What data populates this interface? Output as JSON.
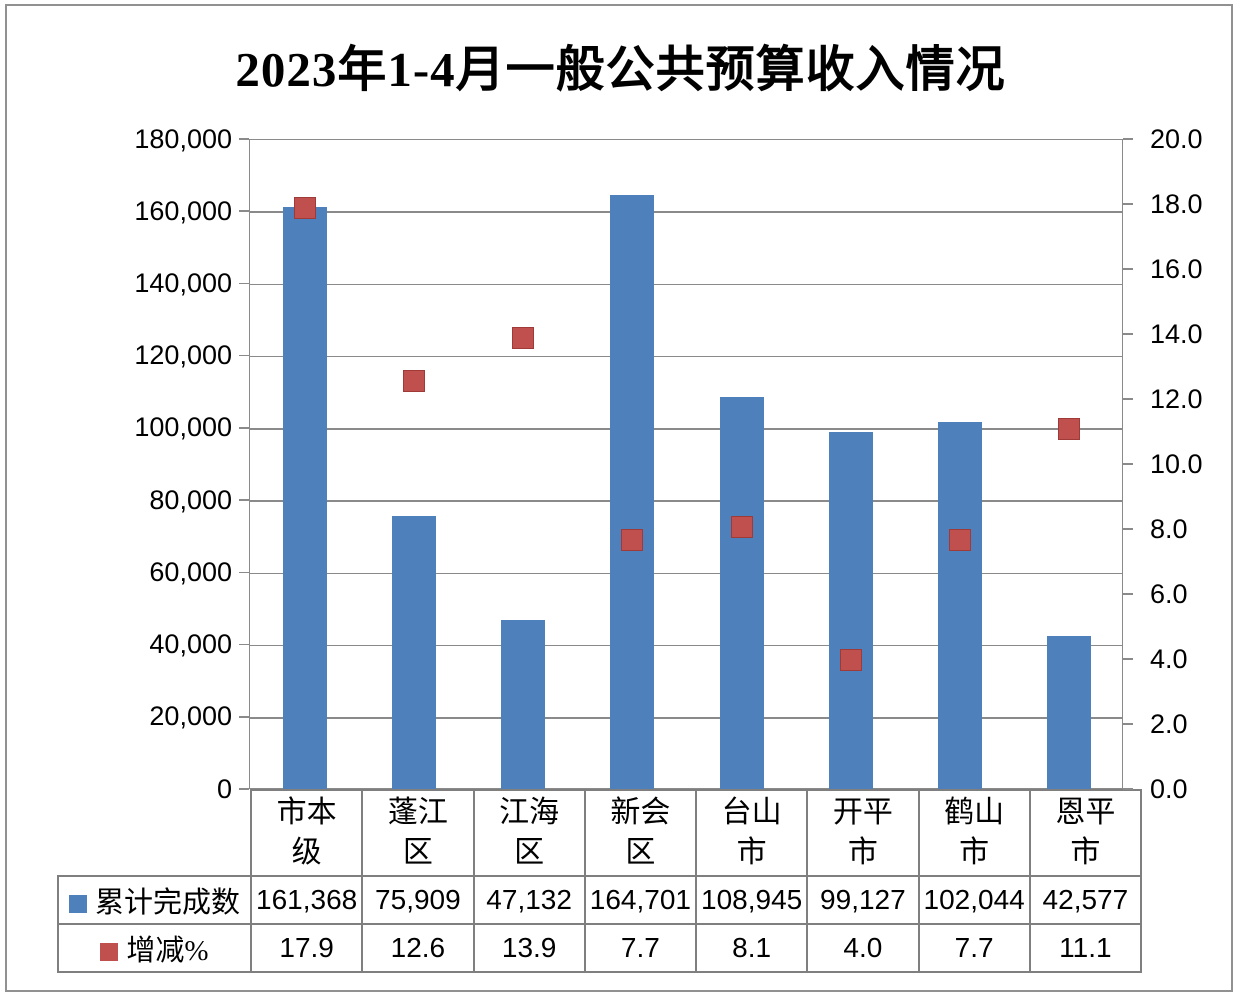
{
  "chart_data": {
    "type": "bar",
    "title": "2023年1-4月一般公共预算收入情况",
    "categories": [
      "市本级",
      "蓬江区",
      "江海区",
      "新会区",
      "台山市",
      "开平市",
      "鹤山市",
      "恩平市"
    ],
    "series": [
      {
        "name": "累计完成数",
        "type": "bar",
        "axis": "left",
        "color": "#4E81BC",
        "values": [
          161368,
          75909,
          47132,
          164701,
          108945,
          99127,
          102044,
          42577
        ]
      },
      {
        "name": "增减%",
        "type": "scatter-square",
        "axis": "right",
        "color": "#C0504D",
        "values": [
          17.9,
          12.6,
          13.9,
          7.7,
          8.1,
          4.0,
          7.7,
          11.1
        ]
      }
    ],
    "left_axis": {
      "min": 0,
      "max": 180000,
      "step": 20000,
      "tick_labels": [
        "180,000",
        "160,000",
        "140,000",
        "120,000",
        "100,000",
        "80,000",
        "60,000",
        "40,000",
        "20,000",
        "0"
      ]
    },
    "right_axis": {
      "min": 0,
      "max": 20,
      "step": 2,
      "tick_labels": [
        "20.0",
        "18.0",
        "16.0",
        "14.0",
        "12.0",
        "10.0",
        "8.0",
        "6.0",
        "4.0",
        "2.0",
        "0.0"
      ]
    },
    "grid": true,
    "legend_position": "data-table-left"
  },
  "table": {
    "category_cells": [
      "市本\n级",
      "蓬江\n区",
      "江海\n区",
      "新会\n区",
      "台山\n市",
      "开平\n市",
      "鹤山\n市",
      "恩平\n市"
    ],
    "rows": [
      {
        "label": "累计完成数",
        "key_color": "#4E81BC",
        "values": [
          "161,368",
          "75,909",
          "47,132",
          "164,701",
          "108,945",
          "99,127",
          "102,044",
          "42,577"
        ]
      },
      {
        "label": "增减%",
        "key_color": "#C0504D",
        "values": [
          "17.9",
          "12.6",
          "13.9",
          "7.7",
          "8.1",
          "4.0",
          "7.7",
          "11.1"
        ]
      }
    ]
  },
  "colors": {
    "bar": "#4E81BC",
    "marker": "#C0504D",
    "gridline": "#8A8A8A",
    "table_border": "#7F7F7F",
    "frame": "#919191"
  }
}
